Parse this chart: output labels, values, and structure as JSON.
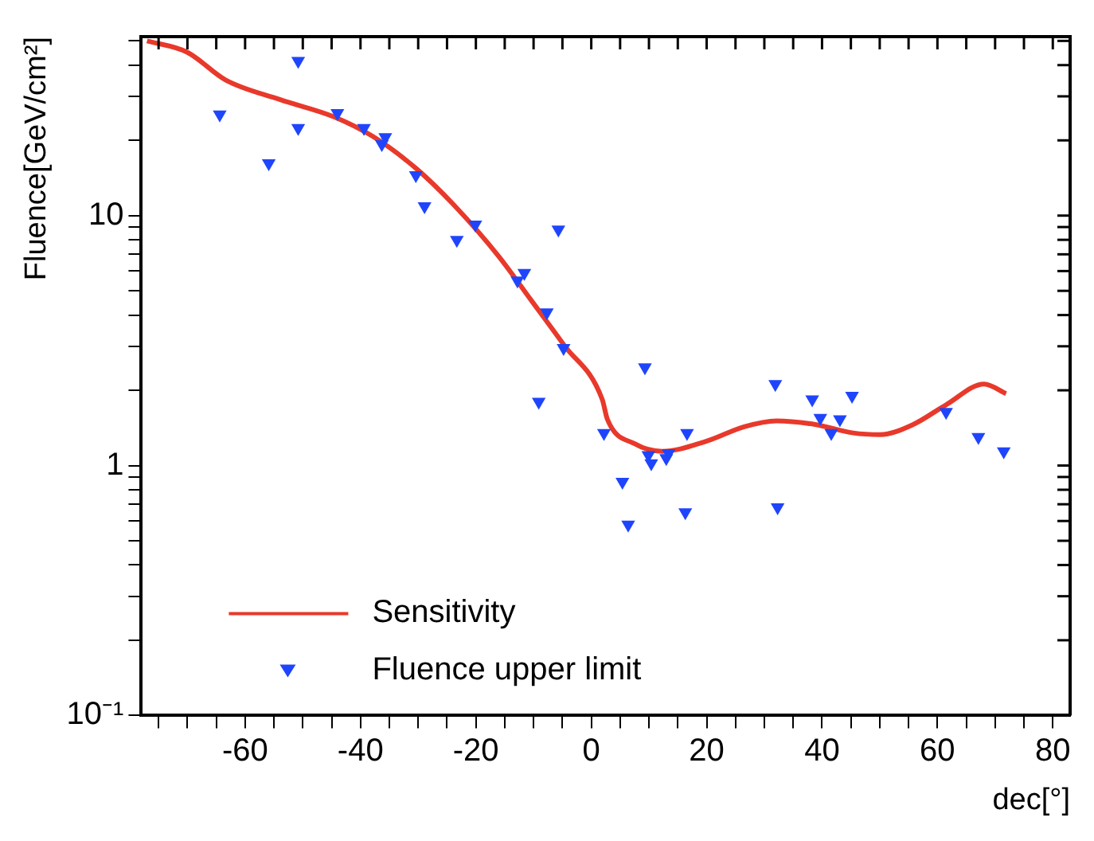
{
  "chart_data": {
    "type": "scatter",
    "xlabel": "dec[°]",
    "ylabel": "Fluence[GeV/cm²]",
    "log": "y",
    "grid": false,
    "legend": "bottom left",
    "xlim": [
      -78,
      83
    ],
    "ylim": [
      0.1,
      52
    ],
    "xticks": [
      {
        "value": -75,
        "label": null
      },
      {
        "value": -70,
        "label": null
      },
      {
        "value": -65,
        "label": null
      },
      -60,
      {
        "value": -55,
        "label": null
      },
      {
        "value": -50,
        "label": null
      },
      {
        "value": -45,
        "label": null
      },
      -40,
      {
        "value": -35,
        "label": null
      },
      {
        "value": -30,
        "label": null
      },
      {
        "value": -25,
        "label": null
      },
      -20,
      {
        "value": -15,
        "label": null
      },
      {
        "value": -10,
        "label": null
      },
      {
        "value": -5,
        "label": null
      },
      0,
      {
        "value": 5,
        "label": null
      },
      {
        "value": 10,
        "label": null
      },
      {
        "value": 15,
        "label": null
      },
      20,
      {
        "value": 25,
        "label": null
      },
      {
        "value": 30,
        "label": null
      },
      {
        "value": 35,
        "label": null
      },
      40,
      {
        "value": 45,
        "label": null
      },
      {
        "value": 50,
        "label": null
      },
      {
        "value": 55,
        "label": null
      },
      60,
      {
        "value": 65,
        "label": null
      },
      {
        "value": 70,
        "label": null
      },
      {
        "value": 75,
        "label": null
      },
      80
    ],
    "yticks": [
      {
        "value": 0.1,
        "label": "10⁻¹"
      },
      {
        "value": 0.2,
        "label": null
      },
      {
        "value": 0.3,
        "label": null
      },
      {
        "value": 0.4,
        "label": null
      },
      {
        "value": 0.5,
        "label": null
      },
      {
        "value": 0.6,
        "label": null
      },
      {
        "value": 0.7,
        "label": null
      },
      {
        "value": 0.8,
        "label": null
      },
      {
        "value": 0.9,
        "label": null
      },
      1,
      {
        "value": 2,
        "label": null
      },
      {
        "value": 3,
        "label": null
      },
      {
        "value": 4,
        "label": null
      },
      {
        "value": 5,
        "label": null
      },
      {
        "value": 6,
        "label": null
      },
      {
        "value": 7,
        "label": null
      },
      {
        "value": 8,
        "label": null
      },
      {
        "value": 9,
        "label": null
      },
      10,
      {
        "value": 20,
        "label": null
      },
      {
        "value": 30,
        "label": null
      },
      {
        "value": 40,
        "label": null
      },
      {
        "value": 50,
        "label": null
      }
    ],
    "series": [
      {
        "name": "Sensitivity",
        "type": "line",
        "color": "#e8392b",
        "marker": "none",
        "line_style": "solid",
        "x": [
          -77,
          -70,
          -63.4,
          -53.9,
          -44.5,
          -37.8,
          -30.3,
          -23.6,
          -16.1,
          -10.4,
          -4.7,
          1.9,
          2.8,
          7.6,
          12.3,
          19.9,
          26.5,
          32.1,
          38.8,
          45.4,
          50.1,
          55.8,
          61.5,
          68.1,
          71.9
        ],
        "values": [
          50,
          45,
          34.9,
          29.1,
          24.8,
          20.7,
          15.4,
          10.9,
          6.9,
          4.58,
          3.03,
          1.84,
          1.53,
          1.22,
          1.14,
          1.25,
          1.43,
          1.51,
          1.46,
          1.35,
          1.33,
          1.46,
          1.75,
          2.12,
          1.94
        ]
      },
      {
        "name": "Fluence upper limit",
        "color": "#1f45fc",
        "marker": "triangle",
        "x": [
          -64.4,
          -55.9,
          -50.8,
          -50.8,
          -44,
          -39.4,
          -36.3,
          -35.7,
          -30.4,
          -28.9,
          -23.3,
          -20.1,
          -12.8,
          -11.6,
          -5.7,
          -7.7,
          -4.8,
          -9.1,
          2.2,
          9.3,
          5.4,
          6.4,
          9.9,
          10.4,
          13,
          13.4,
          16.6,
          16.3,
          31.9,
          32.3,
          38.3,
          39.7,
          41.6,
          43.1,
          45.2,
          61.5,
          67.1,
          71.5
        ],
        "values": [
          25.4,
          16.2,
          41.6,
          22.4,
          25.7,
          22.4,
          19.3,
          20.6,
          14.5,
          10.9,
          8,
          9.2,
          5.5,
          5.9,
          8.8,
          4.1,
          2.95,
          1.8,
          1.35,
          2.47,
          0.86,
          0.58,
          1.1,
          1.02,
          1.07,
          1.12,
          1.35,
          0.65,
          2.12,
          0.68,
          1.84,
          1.55,
          1.35,
          1.53,
          1.9,
          1.64,
          1.3,
          1.14
        ]
      }
    ]
  }
}
